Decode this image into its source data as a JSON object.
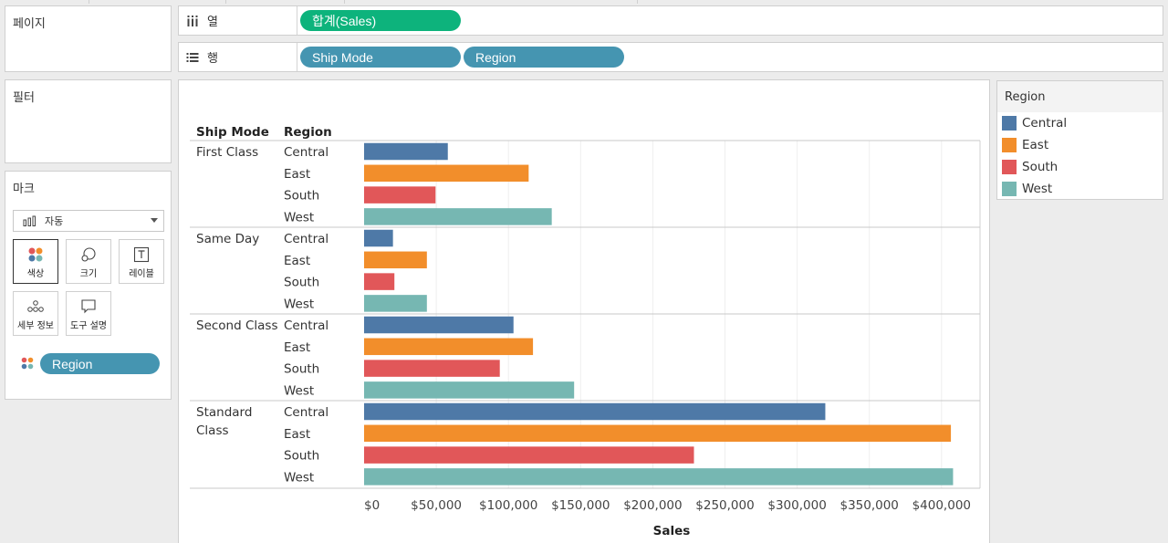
{
  "panels": {
    "pages_title": "페이지",
    "filters_title": "필터",
    "marks_title": "마크"
  },
  "shelves": {
    "columns": {
      "label": "열",
      "icon": "columns-icon",
      "pills": [
        "합계(Sales)"
      ]
    },
    "rows": {
      "label": "행",
      "icon": "rows-icon",
      "pills": [
        "Ship Mode",
        "Region"
      ]
    }
  },
  "marks": {
    "mark_type": "자동",
    "buttons": [
      {
        "id": "color",
        "label": "색상",
        "icon": "color-dots-icon"
      },
      {
        "id": "size",
        "label": "크기",
        "icon": "size-circles-icon"
      },
      {
        "id": "label",
        "label": "레이블",
        "icon": "text-label-icon"
      },
      {
        "id": "detail",
        "label": "세부 정보",
        "icon": "detail-dots-icon"
      },
      {
        "id": "tooltip",
        "label": "도구 설명",
        "icon": "tooltip-bubble-icon"
      }
    ],
    "color_pill": "Region"
  },
  "legend": {
    "title": "Region",
    "items": [
      {
        "label": "Central",
        "color": "#4e79a7"
      },
      {
        "label": "East",
        "color": "#f28e2b"
      },
      {
        "label": "South",
        "color": "#e15759"
      },
      {
        "label": "West",
        "color": "#76b7b2"
      }
    ]
  },
  "chart_data": {
    "type": "bar",
    "orientation": "horizontal",
    "row_headers": [
      "Ship Mode",
      "Region"
    ],
    "groups": [
      {
        "name": "First Class",
        "values": [
          {
            "region": "Central",
            "value": 58000
          },
          {
            "region": "East",
            "value": 114000
          },
          {
            "region": "South",
            "value": 49500
          },
          {
            "region": "West",
            "value": 130000
          }
        ]
      },
      {
        "name": "Same Day",
        "values": [
          {
            "region": "Central",
            "value": 20000
          },
          {
            "region": "East",
            "value": 43500
          },
          {
            "region": "South",
            "value": 21000
          },
          {
            "region": "West",
            "value": 43500
          }
        ]
      },
      {
        "name": "Second Class",
        "values": [
          {
            "region": "Central",
            "value": 103500
          },
          {
            "region": "East",
            "value": 117000
          },
          {
            "region": "South",
            "value": 94000
          },
          {
            "region": "West",
            "value": 145500
          }
        ]
      },
      {
        "name": "Standard Class",
        "values": [
          {
            "region": "Central",
            "value": 319500
          },
          {
            "region": "East",
            "value": 406500
          },
          {
            "region": "South",
            "value": 228500
          },
          {
            "region": "West",
            "value": 408000
          }
        ]
      }
    ],
    "colors": {
      "Central": "#4e79a7",
      "East": "#f28e2b",
      "South": "#e15759",
      "West": "#76b7b2"
    },
    "xlim": [
      0,
      420000
    ],
    "xticks": [
      0,
      50000,
      100000,
      150000,
      200000,
      250000,
      300000,
      350000,
      400000
    ],
    "xtick_labels": [
      "$0",
      "$50,000",
      "$100,000",
      "$150,000",
      "$200,000",
      "$250,000",
      "$300,000",
      "$350,000",
      "$400,000"
    ],
    "xlabel": "Sales"
  }
}
